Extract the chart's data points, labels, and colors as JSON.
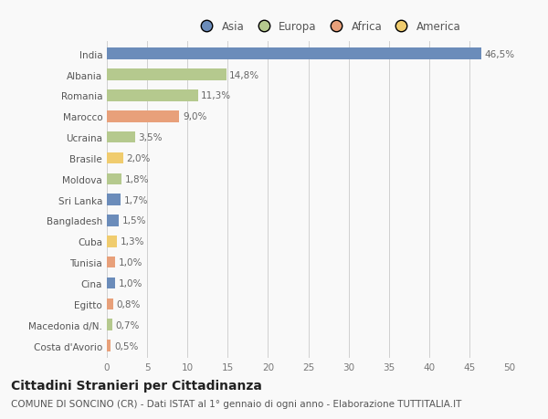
{
  "countries": [
    "India",
    "Albania",
    "Romania",
    "Marocco",
    "Ucraina",
    "Brasile",
    "Moldova",
    "Sri Lanka",
    "Bangladesh",
    "Cuba",
    "Tunisia",
    "Cina",
    "Egitto",
    "Macedonia d/N.",
    "Costa d'Avorio"
  ],
  "values": [
    46.5,
    14.8,
    11.3,
    9.0,
    3.5,
    2.0,
    1.8,
    1.7,
    1.5,
    1.3,
    1.0,
    1.0,
    0.8,
    0.7,
    0.5
  ],
  "labels": [
    "46,5%",
    "14,8%",
    "11,3%",
    "9,0%",
    "3,5%",
    "2,0%",
    "1,8%",
    "1,7%",
    "1,5%",
    "1,3%",
    "1,0%",
    "1,0%",
    "0,8%",
    "0,7%",
    "0,5%"
  ],
  "continents": [
    "Asia",
    "Europa",
    "Europa",
    "Africa",
    "Europa",
    "America",
    "Europa",
    "Asia",
    "Asia",
    "America",
    "Africa",
    "Asia",
    "Africa",
    "Europa",
    "Africa"
  ],
  "colors": {
    "Asia": "#6b8cba",
    "Europa": "#b5c98e",
    "Africa": "#e8a07a",
    "America": "#f0cc6e"
  },
  "legend_order": [
    "Asia",
    "Europa",
    "Africa",
    "America"
  ],
  "title": "Cittadini Stranieri per Cittadinanza",
  "subtitle": "COMUNE DI SONCINO (CR) - Dati ISTAT al 1° gennaio di ogni anno - Elaborazione TUTTITALIA.IT",
  "xlim": [
    0,
    50
  ],
  "xticks": [
    0,
    5,
    10,
    15,
    20,
    25,
    30,
    35,
    40,
    45,
    50
  ],
  "background_color": "#f9f9f9",
  "grid_color": "#d0d0d0",
  "bar_height": 0.55,
  "label_fontsize": 7.5,
  "title_fontsize": 10,
  "subtitle_fontsize": 7.5,
  "tick_fontsize": 7.5,
  "legend_fontsize": 8.5
}
